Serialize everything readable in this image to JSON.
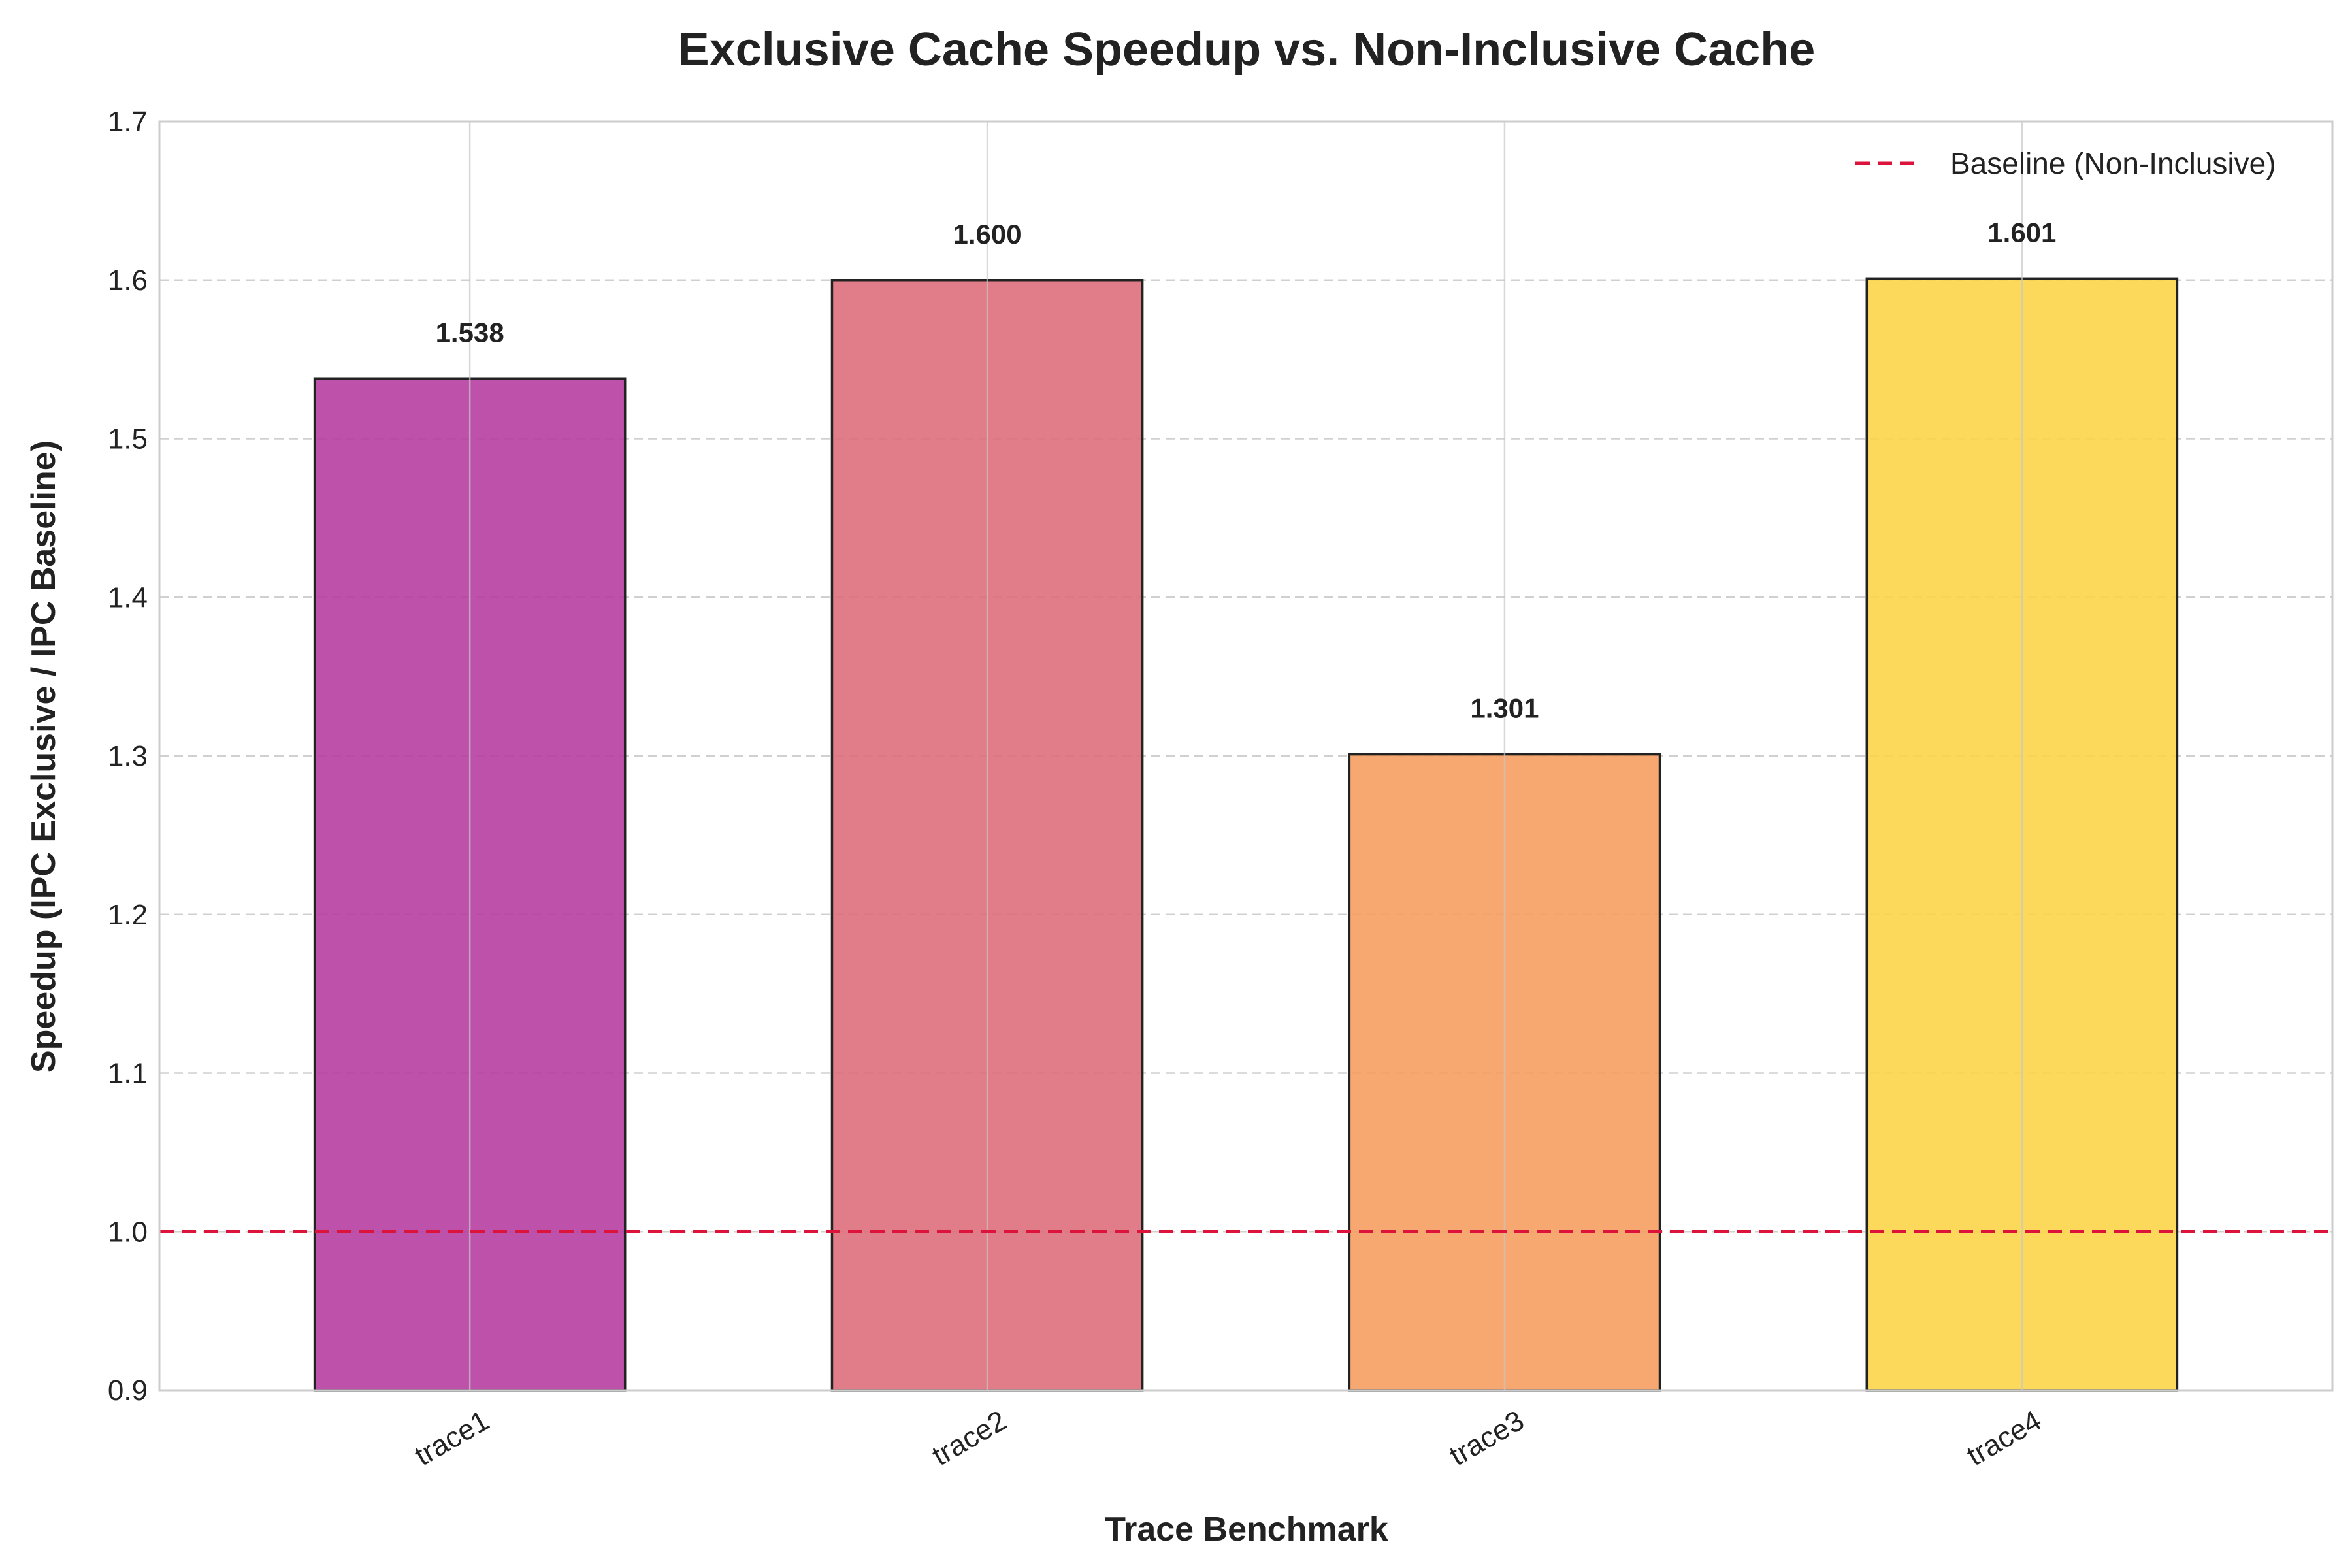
{
  "chart_data": {
    "type": "bar",
    "title": "Exclusive Cache Speedup vs. Non-Inclusive Cache",
    "xlabel": "Trace Benchmark",
    "ylabel": "Speedup (IPC Exclusive / IPC Baseline)",
    "categories": [
      "trace1",
      "trace2",
      "trace3",
      "trace4"
    ],
    "values": [
      1.538,
      1.6,
      1.301,
      1.601
    ],
    "value_labels": [
      "1.538",
      "1.600",
      "1.301",
      "1.601"
    ],
    "bar_colors": [
      "#b5399e",
      "#dd6b77",
      "#f59c5c",
      "#fcd444"
    ],
    "ylim": [
      0.9,
      1.7
    ],
    "yticks": [
      0.9,
      1.0,
      1.1,
      1.2,
      1.3,
      1.4,
      1.5,
      1.6,
      1.7
    ],
    "ytick_labels": [
      "0.9",
      "1.0",
      "1.1",
      "1.2",
      "1.3",
      "1.4",
      "1.5",
      "1.6",
      "1.7"
    ],
    "grid": true,
    "baseline": {
      "value": 1.0,
      "label": "Baseline (Non-Inclusive)",
      "color": "#dc143c",
      "style": "dashed"
    },
    "legend": {
      "position": "top-right"
    }
  }
}
